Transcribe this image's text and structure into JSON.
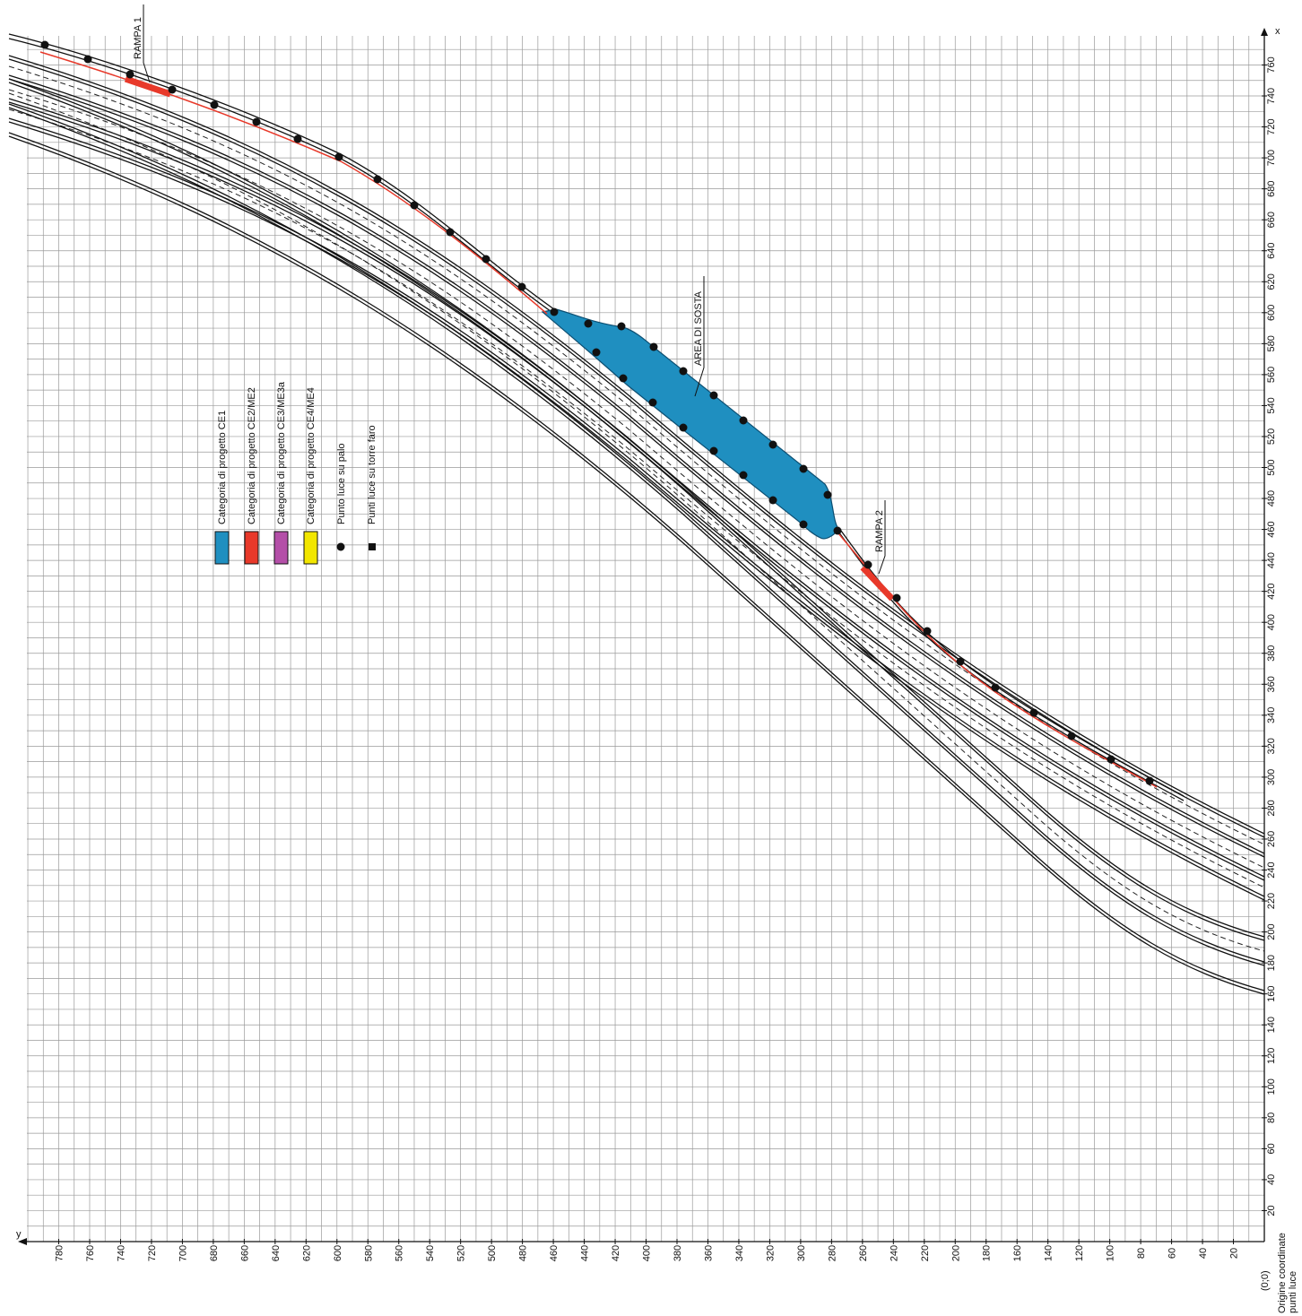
{
  "x_axis": {
    "label": "x",
    "ticks": [
      20,
      40,
      60,
      80,
      100,
      120,
      140,
      160,
      180,
      200,
      220,
      240,
      260,
      280,
      300,
      320,
      340,
      360,
      380,
      400,
      420,
      440,
      460,
      480,
      500,
      520,
      540,
      560,
      580,
      600,
      620,
      640,
      660,
      680,
      700,
      720,
      740,
      760
    ]
  },
  "y_axis": {
    "label": "y",
    "ticks": [
      20,
      40,
      60,
      80,
      100,
      120,
      140,
      160,
      180,
      200,
      220,
      240,
      260,
      280,
      300,
      320,
      340,
      360,
      380,
      400,
      420,
      440,
      460,
      480,
      500,
      520,
      540,
      560,
      580,
      600,
      620,
      640,
      660,
      680,
      700,
      720,
      740,
      760,
      780
    ]
  },
  "origin": {
    "label": "(0;0)",
    "caption": [
      "Origine coordinate",
      "punti luce"
    ]
  },
  "labels": {
    "rampa_1": "RAMPA 1",
    "area_di_sosta": "AREA DI SOSTA",
    "rampa_2": "RAMPA 2"
  },
  "legend": [
    "Categoria di progetto CE1",
    "Categoria di progetto CE2/ME2",
    "Categoria di progetto CE3/ME3a",
    "Categoria di progetto CE4/ME4",
    "Punto luce su palo",
    "Punti luce su torre faro"
  ]
}
